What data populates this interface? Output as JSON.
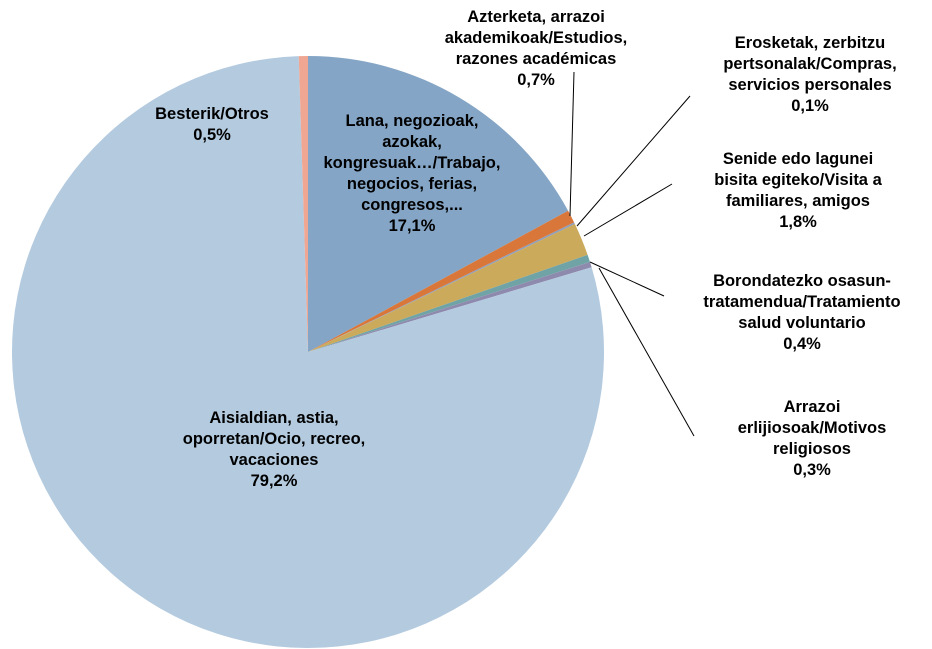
{
  "chart_data": {
    "type": "pie",
    "title": "",
    "start_angle_deg": 0,
    "direction": "clockwise",
    "slices": [
      {
        "label_lines": [
          "Lana, negozioak,",
          "azokak,",
          "kongresuak…/Trabajo,",
          "negocios, ferias,",
          "congresos,..."
        ],
        "value_text": "17,1%",
        "value": 17.1,
        "color": "#84A5C5"
      },
      {
        "label_lines": [
          "Azterketa, arrazoi",
          "akademikoak/Estudios,",
          "razones académicas"
        ],
        "value_text": "0,7%",
        "value": 0.7,
        "color": "#D9773A"
      },
      {
        "label_lines": [
          "Erosketak, zerbitzu",
          "pertsonalak/Compras,",
          "servicios personales"
        ],
        "value_text": "0,1%",
        "value": 0.1,
        "color": "#8F9DB8"
      },
      {
        "label_lines": [
          "Senide edo lagunei",
          "bisita egiteko/Visita a",
          "familiares, amigos"
        ],
        "value_text": "1,8%",
        "value": 1.8,
        "color": "#CBAA5C"
      },
      {
        "label_lines": [
          "Borondatezko osasun-",
          "tratamendua/Tratamiento",
          "salud voluntario"
        ],
        "value_text": "0,4%",
        "value": 0.4,
        "color": "#6FA3A6"
      },
      {
        "label_lines": [
          "Arrazoi",
          "erlijiosoak/Motivos",
          "religiosos"
        ],
        "value_text": "0,3%",
        "value": 0.3,
        "color": "#8E8AAE"
      },
      {
        "label_lines": [
          "Aisialdian, astia,",
          "oporretan/Ocio, recreo,",
          "vacaciones"
        ],
        "value_text": "79,2%",
        "value": 79.2,
        "color": "#B3CADF"
      },
      {
        "label_lines": [
          "Besterik/Otros"
        ],
        "value_text": "0,5%",
        "value": 0.5,
        "color": "#EFA793"
      }
    ]
  }
}
